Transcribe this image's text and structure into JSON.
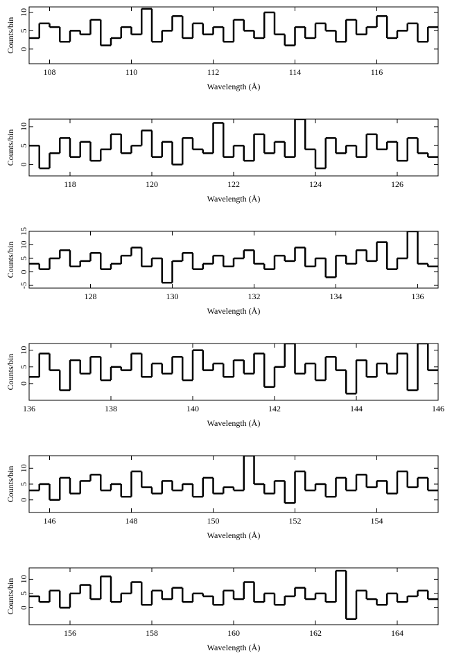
{
  "chart_data": [
    {
      "type": "histogram",
      "ylabel": "Counts/bin",
      "xlabel": "Wavelength (Å)",
      "xlim": [
        107.5,
        117.5
      ],
      "xticks": [
        108,
        110,
        112,
        114,
        116
      ],
      "ylim": [
        -4,
        11.5
      ],
      "yticks": [
        0,
        5,
        10
      ],
      "color": "#000000",
      "bins": [
        107.5,
        107.75,
        108,
        108.25,
        108.5,
        108.75,
        109,
        109.25,
        109.5,
        109.75,
        110,
        110.25,
        110.5,
        110.75,
        111,
        111.25,
        111.5,
        111.75,
        112,
        112.25,
        112.5,
        112.75,
        113,
        113.25,
        113.5,
        113.75,
        114,
        114.25,
        114.5,
        114.75,
        115,
        115.25,
        115.5,
        115.75,
        116,
        116.25,
        116.5,
        116.75,
        117,
        117.25,
        117.5
      ],
      "values": [
        3,
        7,
        6,
        2,
        5,
        4,
        8,
        1,
        3,
        6,
        4,
        11,
        2,
        5,
        9,
        3,
        7,
        4,
        6,
        2,
        8,
        5,
        3,
        10,
        4,
        1,
        6,
        3,
        7,
        5,
        2,
        8,
        4,
        6,
        9,
        3,
        5,
        7,
        2,
        6
      ]
    },
    {
      "type": "histogram",
      "ylabel": "Counts/bin",
      "xlabel": "Wavelength (Å)",
      "xlim": [
        117,
        127
      ],
      "xticks": [
        118,
        120,
        122,
        124,
        126
      ],
      "ylim": [
        -3,
        12
      ],
      "yticks": [
        0,
        5,
        10
      ],
      "color": "#000000",
      "bins": [
        117,
        117.25,
        117.5,
        117.75,
        118,
        118.25,
        118.5,
        118.75,
        119,
        119.25,
        119.5,
        119.75,
        120,
        120.25,
        120.5,
        120.75,
        121,
        121.25,
        121.5,
        121.75,
        122,
        122.25,
        122.5,
        122.75,
        123,
        123.25,
        123.5,
        123.75,
        124,
        124.25,
        124.5,
        124.75,
        125,
        125.25,
        125.5,
        125.75,
        126,
        126.25,
        126.5,
        126.75,
        127
      ],
      "values": [
        5,
        -1,
        3,
        7,
        2,
        6,
        1,
        4,
        8,
        3,
        5,
        9,
        2,
        6,
        0,
        7,
        4,
        3,
        11,
        2,
        5,
        1,
        8,
        3,
        6,
        2,
        12,
        4,
        -1,
        7,
        3,
        5,
        2,
        8,
        4,
        6,
        1,
        7,
        3,
        2
      ]
    },
    {
      "type": "histogram",
      "ylabel": "Counts/bin",
      "xlabel": "Wavelength (Å)",
      "xlim": [
        126.5,
        136.5
      ],
      "xticks": [
        128,
        130,
        132,
        134,
        136
      ],
      "ylim": [
        -6,
        15
      ],
      "yticks": [
        -5,
        0,
        5,
        10,
        15
      ],
      "color": "#000000",
      "bins": [
        126.5,
        126.75,
        127,
        127.25,
        127.5,
        127.75,
        128,
        128.25,
        128.5,
        128.75,
        129,
        129.25,
        129.5,
        129.75,
        130,
        130.25,
        130.5,
        130.75,
        131,
        131.25,
        131.5,
        131.75,
        132,
        132.25,
        132.5,
        132.75,
        133,
        133.25,
        133.5,
        133.75,
        134,
        134.25,
        134.5,
        134.75,
        135,
        135.25,
        135.5,
        135.75,
        136,
        136.25,
        136.5
      ],
      "values": [
        3,
        1,
        5,
        8,
        2,
        4,
        7,
        1,
        3,
        6,
        9,
        2,
        5,
        -4,
        4,
        7,
        1,
        3,
        6,
        2,
        5,
        8,
        3,
        1,
        6,
        4,
        9,
        2,
        5,
        -2,
        6,
        3,
        8,
        4,
        11,
        1,
        5,
        15,
        3,
        2
      ]
    },
    {
      "type": "histogram",
      "ylabel": "Counts/bin",
      "xlabel": "Wavelength (Å)",
      "xlim": [
        136,
        146
      ],
      "xticks": [
        136,
        138,
        140,
        142,
        144,
        146
      ],
      "ylim": [
        -5,
        12
      ],
      "yticks": [
        0,
        5,
        10
      ],
      "color": "#000000",
      "bins": [
        136,
        136.25,
        136.5,
        136.75,
        137,
        137.25,
        137.5,
        137.75,
        138,
        138.25,
        138.5,
        138.75,
        139,
        139.25,
        139.5,
        139.75,
        140,
        140.25,
        140.5,
        140.75,
        141,
        141.25,
        141.5,
        141.75,
        142,
        142.25,
        142.5,
        142.75,
        143,
        143.25,
        143.5,
        143.75,
        144,
        144.25,
        144.5,
        144.75,
        145,
        145.25,
        145.5,
        145.75,
        146
      ],
      "values": [
        2,
        9,
        4,
        -2,
        7,
        3,
        8,
        1,
        5,
        4,
        9,
        2,
        6,
        3,
        8,
        1,
        10,
        4,
        6,
        2,
        7,
        3,
        9,
        -1,
        5,
        12,
        3,
        6,
        1,
        8,
        4,
        -3,
        7,
        2,
        6,
        3,
        9,
        -2,
        12,
        4
      ]
    },
    {
      "type": "histogram",
      "ylabel": "Counts/bin",
      "xlabel": "Wavelength (Å)",
      "xlim": [
        145.5,
        155.5
      ],
      "xticks": [
        146,
        148,
        150,
        152,
        154
      ],
      "ylim": [
        -4,
        14
      ],
      "yticks": [
        0,
        5,
        10
      ],
      "color": "#000000",
      "bins": [
        145.5,
        145.75,
        146,
        146.25,
        146.5,
        146.75,
        147,
        147.25,
        147.5,
        147.75,
        148,
        148.25,
        148.5,
        148.75,
        149,
        149.25,
        149.5,
        149.75,
        150,
        150.25,
        150.5,
        150.75,
        151,
        151.25,
        151.5,
        151.75,
        152,
        152.25,
        152.5,
        152.75,
        153,
        153.25,
        153.5,
        153.75,
        154,
        154.25,
        154.5,
        154.75,
        155,
        155.25,
        155.5
      ],
      "values": [
        3,
        5,
        0,
        7,
        2,
        6,
        8,
        3,
        5,
        1,
        9,
        4,
        2,
        6,
        3,
        5,
        1,
        7,
        2,
        4,
        3,
        14,
        5,
        2,
        6,
        -1,
        9,
        3,
        5,
        1,
        7,
        3,
        8,
        4,
        6,
        2,
        9,
        4,
        7,
        3
      ]
    },
    {
      "type": "histogram",
      "ylabel": "Counts/bin",
      "xlabel": "Wavelength (Å)",
      "xlim": [
        155,
        165
      ],
      "xticks": [
        156,
        158,
        160,
        162,
        164
      ],
      "ylim": [
        -6,
        14
      ],
      "yticks": [
        0,
        5,
        10
      ],
      "color": "#000000",
      "bins": [
        155,
        155.25,
        155.5,
        155.75,
        156,
        156.25,
        156.5,
        156.75,
        157,
        157.25,
        157.5,
        157.75,
        158,
        158.25,
        158.5,
        158.75,
        159,
        159.25,
        159.5,
        159.75,
        160,
        160.25,
        160.5,
        160.75,
        161,
        161.25,
        161.5,
        161.75,
        162,
        162.25,
        162.5,
        162.75,
        163,
        163.25,
        163.5,
        163.75,
        164,
        164.25,
        164.5,
        164.75,
        165
      ],
      "values": [
        4,
        2,
        6,
        0,
        5,
        8,
        3,
        11,
        2,
        5,
        9,
        1,
        6,
        3,
        7,
        2,
        5,
        4,
        1,
        6,
        3,
        9,
        2,
        5,
        1,
        4,
        7,
        3,
        5,
        2,
        13,
        -4,
        6,
        3,
        1,
        5,
        2,
        4,
        6,
        3
      ]
    }
  ]
}
